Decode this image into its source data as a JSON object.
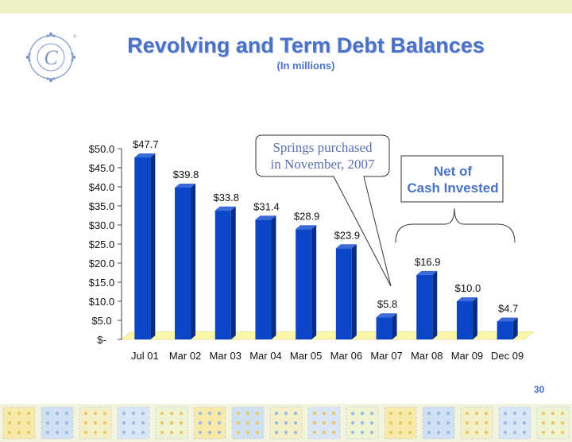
{
  "slide": {
    "title": "Revolving and Term Debt Balances",
    "subtitle": "(In millions)",
    "page_number": "30"
  },
  "callouts": {
    "springs_line1": "Springs purchased",
    "springs_line2": "in November, 2007",
    "net_line1": "Net of",
    "net_line2": "Cash Invested"
  },
  "colors": {
    "bar_front": "#0b45c8",
    "bar_side": "#082d82",
    "bar_top": "#3c6bd9",
    "floor": "#fbf6a8",
    "title": "#4c72c4",
    "top_band": "#eef1c6"
  },
  "chart_data": {
    "type": "bar",
    "title": "Revolving and Term Debt Balances",
    "subtitle": "(In millions)",
    "categories": [
      "Jul 01",
      "Mar 02",
      "Mar 03",
      "Mar 04",
      "Mar 05",
      "Mar 06",
      "Mar 07",
      "Mar 08",
      "Mar 09",
      "Dec 09"
    ],
    "values": [
      47.7,
      39.8,
      33.8,
      31.4,
      28.9,
      23.9,
      5.8,
      16.9,
      10.0,
      4.7
    ],
    "data_labels": [
      "$47.7",
      "$39.8",
      "$33.8",
      "$31.4",
      "$28.9",
      "$23.9",
      "$5.8",
      "$16.9",
      "$10.0",
      "$4.7"
    ],
    "yticks": [
      "$-",
      "$5.0",
      "$10.0",
      "$15.0",
      "$20.0",
      "$25.0",
      "$30.0",
      "$35.0",
      "$40.0",
      "$45.0",
      "$50.0"
    ],
    "ylim": [
      0,
      50
    ],
    "grid": false,
    "legend": "none",
    "style": "3d"
  }
}
